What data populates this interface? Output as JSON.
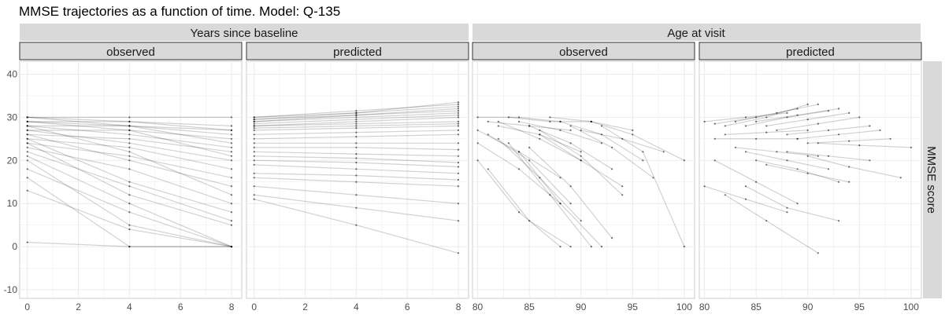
{
  "title": "MMSE trajectories as a function of time. Model: Q-135",
  "right_label": "MMSE score",
  "chart_data": [
    {
      "type": "line",
      "group": "Years since baseline",
      "panel": "observed",
      "xlim": [
        -0.3,
        8.4
      ],
      "x_ticks": [
        0,
        2,
        4,
        6,
        8
      ],
      "ylim": [
        -12,
        43
      ],
      "y_ticks": [
        -10,
        0,
        10,
        20,
        30,
        40
      ],
      "x_points": [
        0,
        4,
        8
      ],
      "series": [
        {
          "values": [
            30,
            30,
            30
          ]
        },
        {
          "values": [
            30,
            29,
            28
          ]
        },
        {
          "values": [
            29,
            29,
            27
          ]
        },
        {
          "values": [
            29,
            28,
            26
          ]
        },
        {
          "values": [
            28,
            28,
            27
          ]
        },
        {
          "values": [
            28,
            26,
            23
          ]
        },
        {
          "values": [
            27,
            27,
            25
          ]
        },
        {
          "values": [
            27,
            24,
            20
          ]
        },
        {
          "values": [
            26,
            25,
            22
          ]
        },
        {
          "values": [
            26,
            20,
            14
          ]
        },
        {
          "values": [
            25,
            23,
            18
          ]
        },
        {
          "values": [
            25,
            15,
            8
          ]
        },
        {
          "values": [
            24,
            21,
            16
          ]
        },
        {
          "values": [
            24,
            12,
            5
          ]
        },
        {
          "values": [
            23,
            18,
            10
          ]
        },
        {
          "values": [
            22,
            14,
            6
          ]
        },
        {
          "values": [
            21,
            10,
            0
          ]
        },
        {
          "values": [
            20,
            5,
            0
          ]
        },
        {
          "values": [
            18,
            8,
            0
          ]
        },
        {
          "values": [
            16,
            0,
            0
          ]
        },
        {
          "values": [
            13,
            4,
            0
          ]
        },
        {
          "values": [
            30,
            28,
            24
          ]
        },
        {
          "values": [
            29,
            27,
            21
          ]
        },
        {
          "values": [
            28,
            22,
            12
          ]
        },
        {
          "values": [
            1,
            0,
            0
          ]
        }
      ],
      "grid": true
    },
    {
      "type": "line",
      "group": "Years since baseline",
      "panel": "predicted",
      "xlim": [
        -0.3,
        8.4
      ],
      "x_ticks": [
        0,
        2,
        4,
        6,
        8
      ],
      "ylim": [
        -12,
        43
      ],
      "y_ticks": [
        -10,
        0,
        10,
        20,
        30,
        40
      ],
      "x_points": [
        0,
        4,
        8
      ],
      "series": [
        {
          "values": [
            30,
            31.5,
            33
          ]
        },
        {
          "values": [
            29.5,
            31,
            32.5
          ]
        },
        {
          "values": [
            29,
            30.5,
            32
          ]
        },
        {
          "values": [
            29,
            30,
            31
          ]
        },
        {
          "values": [
            28.5,
            29.5,
            30.5
          ]
        },
        {
          "values": [
            28,
            29,
            30
          ]
        },
        {
          "values": [
            27.5,
            28,
            28.5
          ]
        },
        {
          "values": [
            27,
            27.5,
            28
          ]
        },
        {
          "values": [
            26,
            26.5,
            27
          ]
        },
        {
          "values": [
            25,
            25.5,
            26
          ]
        },
        {
          "values": [
            24,
            24,
            24
          ]
        },
        {
          "values": [
            23,
            23,
            22.5
          ]
        },
        {
          "values": [
            22,
            21.5,
            21
          ]
        },
        {
          "values": [
            21,
            20.5,
            19.5
          ]
        },
        {
          "values": [
            20,
            19.5,
            18.5
          ]
        },
        {
          "values": [
            19,
            18,
            17
          ]
        },
        {
          "values": [
            17,
            16.5,
            15.5
          ]
        },
        {
          "values": [
            16,
            15,
            14
          ]
        },
        {
          "values": [
            14,
            12,
            10
          ]
        },
        {
          "values": [
            12,
            9,
            6
          ]
        },
        {
          "values": [
            11,
            5,
            -1.5
          ]
        },
        {
          "values": [
            30,
            31,
            33.5
          ]
        },
        {
          "values": [
            29.5,
            30.5,
            31.5
          ]
        },
        {
          "values": [
            28,
            28.5,
            29
          ]
        }
      ],
      "grid": true
    },
    {
      "type": "line",
      "group": "Age at visit",
      "panel": "observed",
      "xlim": [
        79.5,
        101
      ],
      "x_ticks": [
        80,
        85,
        90,
        95,
        100
      ],
      "ylim": [
        -12,
        43
      ],
      "y_ticks": [
        -10,
        0,
        10,
        20,
        30,
        40
      ],
      "series": [
        {
          "x": [
            80,
            84,
            88
          ],
          "values": [
            30,
            30,
            29
          ]
        },
        {
          "x": [
            81,
            85,
            89
          ],
          "values": [
            29,
            28,
            27
          ]
        },
        {
          "x": [
            82,
            86,
            90
          ],
          "values": [
            28,
            26,
            22
          ]
        },
        {
          "x": [
            80,
            84,
            88
          ],
          "values": [
            27,
            22,
            16
          ]
        },
        {
          "x": [
            81,
            85,
            89
          ],
          "values": [
            26,
            20,
            10
          ]
        },
        {
          "x": [
            83,
            87,
            91
          ],
          "values": [
            30,
            29,
            29
          ]
        },
        {
          "x": [
            84,
            88,
            92
          ],
          "values": [
            29,
            27,
            24
          ]
        },
        {
          "x": [
            85,
            89,
            93
          ],
          "values": [
            28,
            24,
            18
          ]
        },
        {
          "x": [
            86,
            90,
            94
          ],
          "values": [
            27,
            21,
            12
          ]
        },
        {
          "x": [
            87,
            91,
            95
          ],
          "values": [
            30,
            29,
            27
          ]
        },
        {
          "x": [
            88,
            92,
            96
          ],
          "values": [
            29,
            26,
            20
          ]
        },
        {
          "x": [
            89,
            93,
            97
          ],
          "values": [
            28,
            23,
            16
          ]
        },
        {
          "x": [
            90,
            94,
            98
          ],
          "values": [
            27,
            25,
            22
          ]
        },
        {
          "x": [
            82,
            86,
            90
          ],
          "values": [
            25,
            16,
            6
          ]
        },
        {
          "x": [
            83,
            87,
            91
          ],
          "values": [
            24,
            12,
            0
          ]
        },
        {
          "x": [
            84,
            88,
            92
          ],
          "values": [
            22,
            10,
            0
          ]
        },
        {
          "x": [
            80,
            84,
            88
          ],
          "values": [
            20,
            8,
            0
          ]
        },
        {
          "x": [
            81,
            85,
            89
          ],
          "values": [
            18,
            6,
            0
          ]
        },
        {
          "x": [
            85,
            89,
            93
          ],
          "values": [
            23,
            14,
            2
          ]
        },
        {
          "x": [
            91,
            95,
            100
          ],
          "values": [
            29,
            26,
            20
          ]
        },
        {
          "x": [
            92,
            96,
            100
          ],
          "values": [
            28,
            22,
            0
          ]
        },
        {
          "x": [
            86,
            90,
            94
          ],
          "values": [
            26,
            20,
            14
          ]
        },
        {
          "x": [
            82,
            86,
            90
          ],
          "values": [
            29,
            25,
            20
          ]
        },
        {
          "x": [
            80,
            84,
            88
          ],
          "values": [
            24,
            18,
            10
          ]
        }
      ],
      "grid": true
    },
    {
      "type": "line",
      "group": "Age at visit",
      "panel": "predicted",
      "xlim": [
        79.5,
        101
      ],
      "x_ticks": [
        80,
        85,
        90,
        95,
        100
      ],
      "ylim": [
        -12,
        43
      ],
      "y_ticks": [
        -10,
        0,
        10,
        20,
        30,
        40
      ],
      "series": [
        {
          "x": [
            80,
            84,
            88
          ],
          "values": [
            29,
            30,
            31
          ]
        },
        {
          "x": [
            81,
            85,
            89
          ],
          "values": [
            28.5,
            30,
            32
          ]
        },
        {
          "x": [
            82,
            86,
            90
          ],
          "values": [
            28,
            30,
            33
          ]
        },
        {
          "x": [
            83,
            87,
            91
          ],
          "values": [
            29,
            31,
            33
          ]
        },
        {
          "x": [
            84,
            88,
            92
          ],
          "values": [
            28,
            30,
            31.5
          ]
        },
        {
          "x": [
            85,
            89,
            93
          ],
          "values": [
            29,
            30.5,
            32
          ]
        },
        {
          "x": [
            86,
            90,
            94
          ],
          "values": [
            28,
            29.5,
            31
          ]
        },
        {
          "x": [
            87,
            91,
            95
          ],
          "values": [
            27,
            28.5,
            30
          ]
        },
        {
          "x": [
            88,
            92,
            96
          ],
          "values": [
            26,
            27,
            28
          ]
        },
        {
          "x": [
            89,
            93,
            97
          ],
          "values": [
            25,
            26,
            27
          ]
        },
        {
          "x": [
            90,
            94,
            98
          ],
          "values": [
            24,
            24.5,
            25
          ]
        },
        {
          "x": [
            91,
            95,
            100
          ],
          "values": [
            24,
            23.5,
            23
          ]
        },
        {
          "x": [
            82,
            86,
            90
          ],
          "values": [
            26,
            26.5,
            27
          ]
        },
        {
          "x": [
            81,
            85,
            89
          ],
          "values": [
            25,
            25,
            25
          ]
        },
        {
          "x": [
            83,
            87,
            91
          ],
          "values": [
            23,
            22,
            21
          ]
        },
        {
          "x": [
            84,
            88,
            92
          ],
          "values": [
            22,
            20,
            18
          ]
        },
        {
          "x": [
            85,
            89,
            93
          ],
          "values": [
            20,
            18,
            15
          ]
        },
        {
          "x": [
            86,
            90,
            94
          ],
          "values": [
            19,
            17,
            15
          ]
        },
        {
          "x": [
            80,
            84,
            88
          ],
          "values": [
            14,
            11,
            8
          ]
        },
        {
          "x": [
            82,
            86,
            91
          ],
          "values": [
            12,
            6,
            -1.5
          ]
        },
        {
          "x": [
            88,
            92,
            96
          ],
          "values": [
            22,
            21,
            20
          ]
        },
        {
          "x": [
            90,
            94,
            99
          ],
          "values": [
            21,
            18.5,
            16
          ]
        },
        {
          "x": [
            81,
            85,
            89
          ],
          "values": [
            20,
            15,
            10
          ]
        },
        {
          "x": [
            84,
            88,
            93
          ],
          "values": [
            14,
            9,
            6
          ]
        }
      ],
      "grid": true
    }
  ],
  "colors": {
    "strip_bg": "#d9d9d9",
    "strip_border": "#333333",
    "grid": "#ebebeb",
    "line": "#000000",
    "axis_text": "#4d4d4d"
  }
}
